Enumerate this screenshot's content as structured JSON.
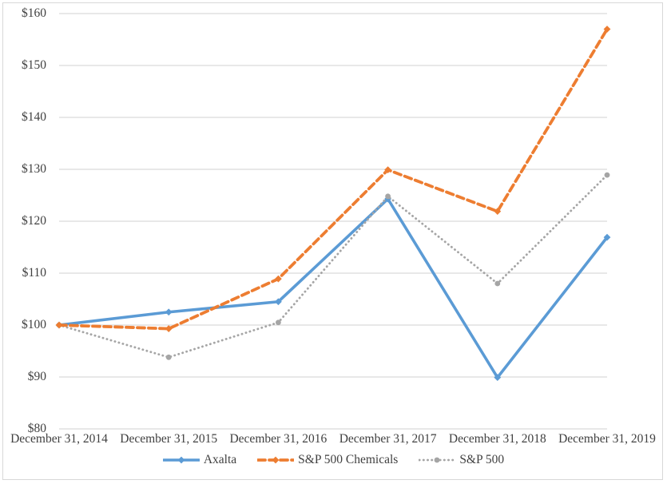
{
  "chart_data": {
    "type": "line",
    "title": "",
    "categories": [
      "December 31, 2014",
      "December 31, 2015",
      "December 31, 2016",
      "December 31, 2017",
      "December 31, 2018",
      "December 31, 2019"
    ],
    "series": [
      {
        "name": "Axalta",
        "color": "#5B9BD5",
        "style": "solid",
        "marker": "diamond",
        "values": [
          100,
          102.5,
          104.5,
          124.3,
          89.9,
          116.9
        ]
      },
      {
        "name": "S&P 500 Chemicals",
        "color": "#ED7D31",
        "style": "dashed",
        "marker": "diamond",
        "values": [
          100,
          99.3,
          108.9,
          129.9,
          121.9,
          157.0
        ]
      },
      {
        "name": "S&P 500",
        "color": "#A5A5A5",
        "style": "dotted",
        "marker": "circle",
        "values": [
          100,
          93.8,
          100.5,
          124.8,
          108.0,
          128.9
        ]
      }
    ],
    "ylim": [
      80,
      160
    ],
    "yticks": [
      {
        "value": 80,
        "label": "$80"
      },
      {
        "value": 90,
        "label": "$90"
      },
      {
        "value": 100,
        "label": "$100"
      },
      {
        "value": 110,
        "label": "$110"
      },
      {
        "value": 120,
        "label": "$120"
      },
      {
        "value": 130,
        "label": "$130"
      },
      {
        "value": 140,
        "label": "$140"
      },
      {
        "value": 150,
        "label": "$150"
      },
      {
        "value": 160,
        "label": "$160"
      }
    ],
    "xlabel": "",
    "ylabel": "",
    "grid": "horizontal",
    "gridline_color": "#D9D9D9",
    "text_color": "#404040",
    "frame_color": "#D8D8D8",
    "legend_position": "bottom"
  }
}
